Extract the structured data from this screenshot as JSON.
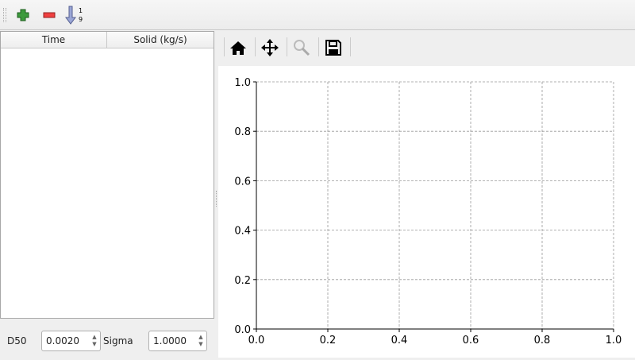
{
  "toolbar": {
    "items": [
      {
        "name": "add-row-icon",
        "color": "#3a8a3a"
      },
      {
        "name": "remove-row-icon",
        "color": "#e03030"
      },
      {
        "name": "sort-icon",
        "color": "#8090c0"
      }
    ]
  },
  "table": {
    "columns": [
      "Time",
      "Solid (kg/s)"
    ],
    "rows": []
  },
  "params": {
    "d50_label": "D50",
    "d50_value": "0.0020",
    "sigma_label": "Sigma",
    "sigma_value": "1.0000"
  },
  "plot_toolbar": [
    "home-icon",
    "pan-icon",
    "zoom-icon",
    "save-icon"
  ],
  "chart_data": {
    "type": "line",
    "series": [],
    "xlim": [
      0,
      1
    ],
    "ylim": [
      0,
      1
    ],
    "grid": true,
    "xticks": [
      "0.0",
      "0.2",
      "0.4",
      "0.6",
      "0.8",
      "1.0"
    ],
    "yticks": [
      "0.0",
      "0.2",
      "0.4",
      "0.6",
      "0.8",
      "1.0"
    ]
  }
}
